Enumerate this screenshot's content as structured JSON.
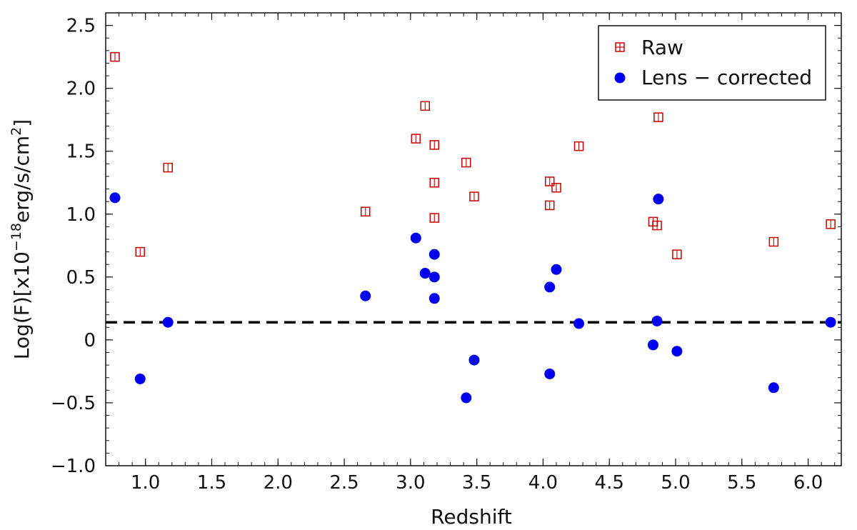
{
  "chart_data": {
    "type": "scatter",
    "xlabel": "Redshift",
    "ylabel": {
      "prefix": "Log(F)[x10",
      "exp1": "−18",
      "middle": "erg/s/cm",
      "exp2": "2",
      "suffix": "]"
    },
    "xlim": [
      0.7,
      6.25
    ],
    "ylim": [
      -1.0,
      2.6
    ],
    "xticks": [
      1.0,
      1.5,
      2.0,
      2.5,
      3.0,
      3.5,
      4.0,
      4.5,
      5.0,
      5.5,
      6.0
    ],
    "xtick_labels": [
      "1.0",
      "1.5",
      "2.0",
      "2.5",
      "3.0",
      "3.5",
      "4.0",
      "4.5",
      "5.0",
      "5.5",
      "6.0"
    ],
    "yticks": [
      -1.0,
      -0.5,
      0,
      0.5,
      1.0,
      1.5,
      2.0,
      2.5
    ],
    "ytick_labels": [
      "−1.0",
      "−0.5",
      "0",
      "0.5",
      "1.0",
      "1.5",
      "2.0",
      "2.5"
    ],
    "reference_line": {
      "y": 0.14,
      "style": "dashed",
      "color": "#000000"
    },
    "legend_position": "top-right",
    "series": [
      {
        "name": "Raw",
        "legend_label": "Raw",
        "marker": "open-square",
        "color": "#cc0000",
        "points": [
          [
            0.77,
            2.25
          ],
          [
            0.96,
            0.7
          ],
          [
            1.17,
            1.37
          ],
          [
            2.66,
            1.02
          ],
          [
            3.04,
            1.6
          ],
          [
            3.11,
            1.86
          ],
          [
            3.18,
            1.55
          ],
          [
            3.18,
            1.25
          ],
          [
            3.18,
            0.97
          ],
          [
            3.42,
            1.41
          ],
          [
            3.48,
            1.14
          ],
          [
            4.05,
            1.26
          ],
          [
            4.05,
            1.07
          ],
          [
            4.1,
            1.21
          ],
          [
            4.27,
            1.54
          ],
          [
            4.83,
            0.94
          ],
          [
            4.86,
            0.91
          ],
          [
            4.87,
            1.77
          ],
          [
            5.01,
            0.68
          ],
          [
            5.74,
            0.78
          ],
          [
            6.17,
            0.92
          ]
        ]
      },
      {
        "name": "Lens-corrected",
        "legend_label": "Lens − corrected",
        "marker": "filled-circle",
        "color": "#0000ee",
        "points": [
          [
            0.77,
            1.13
          ],
          [
            0.96,
            -0.31
          ],
          [
            1.17,
            0.14
          ],
          [
            2.66,
            0.35
          ],
          [
            3.04,
            0.81
          ],
          [
            3.11,
            0.53
          ],
          [
            3.18,
            0.68
          ],
          [
            3.18,
            0.5
          ],
          [
            3.18,
            0.33
          ],
          [
            3.42,
            -0.46
          ],
          [
            3.48,
            -0.16
          ],
          [
            4.05,
            0.42
          ],
          [
            4.05,
            -0.27
          ],
          [
            4.1,
            0.56
          ],
          [
            4.27,
            0.13
          ],
          [
            4.83,
            -0.04
          ],
          [
            4.86,
            0.15
          ],
          [
            4.87,
            1.12
          ],
          [
            5.01,
            -0.09
          ],
          [
            5.74,
            -0.38
          ],
          [
            6.17,
            0.14
          ]
        ]
      }
    ]
  }
}
